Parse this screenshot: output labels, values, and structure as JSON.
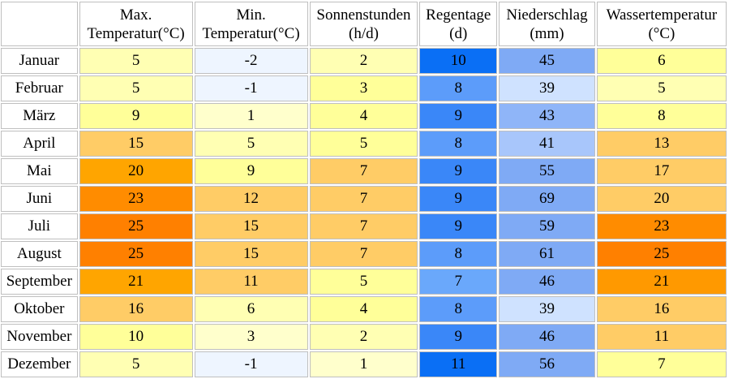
{
  "table": {
    "headers": [
      {
        "line1": "Max.",
        "line2": "Temperatur(°C)"
      },
      {
        "line1": "Min.",
        "line2": "Temperatur(°C)"
      },
      {
        "line1": "Sonnenstunden",
        "line2": "(h/d)"
      },
      {
        "line1": "Regentage",
        "line2": "(d)"
      },
      {
        "line1": "Niederschlag",
        "line2": "(mm)"
      },
      {
        "line1": "Wassertemperatur",
        "line2": "(°C)"
      }
    ],
    "rows": [
      {
        "month": "Januar",
        "values": [
          "5",
          "-2",
          "2",
          "10",
          "45",
          "6"
        ],
        "colors": [
          "#ffffb3",
          "#eef5ff",
          "#ffffb3",
          "#0a6ff5",
          "#7faaf5",
          "#ffff99"
        ]
      },
      {
        "month": "Februar",
        "values": [
          "5",
          "-1",
          "3",
          "8",
          "39",
          "5"
        ],
        "colors": [
          "#ffffb3",
          "#eef5ff",
          "#ffff99",
          "#5c9cfa",
          "#cfe2ff",
          "#ffffb3"
        ]
      },
      {
        "month": "März",
        "values": [
          "9",
          "1",
          "4",
          "9",
          "43",
          "8"
        ],
        "colors": [
          "#ffff99",
          "#ffffcc",
          "#ffff99",
          "#3a87f8",
          "#8fb5f8",
          "#ffff99"
        ]
      },
      {
        "month": "April",
        "values": [
          "15",
          "5",
          "5",
          "8",
          "41",
          "13"
        ],
        "colors": [
          "#ffcc66",
          "#ffffb3",
          "#ffff99",
          "#5c9cfa",
          "#a8c6fb",
          "#ffcc66"
        ]
      },
      {
        "month": "Mai",
        "values": [
          "20",
          "9",
          "7",
          "9",
          "55",
          "17"
        ],
        "colors": [
          "#ffa500",
          "#ffff99",
          "#ffcc66",
          "#3a87f8",
          "#7faaf5",
          "#ffcc66"
        ]
      },
      {
        "month": "Juni",
        "values": [
          "23",
          "12",
          "7",
          "9",
          "69",
          "20"
        ],
        "colors": [
          "#ff8c00",
          "#ffcc66",
          "#ffcc66",
          "#3a87f8",
          "#7faaf5",
          "#ffcc66"
        ]
      },
      {
        "month": "Juli",
        "values": [
          "25",
          "15",
          "7",
          "9",
          "59",
          "23"
        ],
        "colors": [
          "#ff8000",
          "#ffcc66",
          "#ffcc66",
          "#3a87f8",
          "#7faaf5",
          "#ff8c00"
        ]
      },
      {
        "month": "August",
        "values": [
          "25",
          "15",
          "7",
          "8",
          "61",
          "25"
        ],
        "colors": [
          "#ff8000",
          "#ffcc66",
          "#ffcc66",
          "#5c9cfa",
          "#7faaf5",
          "#ff8000"
        ]
      },
      {
        "month": "September",
        "values": [
          "21",
          "11",
          "5",
          "7",
          "46",
          "21"
        ],
        "colors": [
          "#ffa500",
          "#ffcc66",
          "#ffff99",
          "#6aa8fb",
          "#7faaf5",
          "#ff9900"
        ]
      },
      {
        "month": "Oktober",
        "values": [
          "16",
          "6",
          "4",
          "8",
          "39",
          "16"
        ],
        "colors": [
          "#ffcc66",
          "#ffffb3",
          "#ffff99",
          "#5c9cfa",
          "#cfe2ff",
          "#ffcc66"
        ]
      },
      {
        "month": "November",
        "values": [
          "10",
          "3",
          "2",
          "9",
          "46",
          "11"
        ],
        "colors": [
          "#ffff99",
          "#ffffcc",
          "#ffffb3",
          "#3a87f8",
          "#7faaf5",
          "#ffcc66"
        ]
      },
      {
        "month": "Dezember",
        "values": [
          "5",
          "-1",
          "1",
          "11",
          "56",
          "7"
        ],
        "colors": [
          "#ffffb3",
          "#eef5ff",
          "#ffffcc",
          "#0a6ff5",
          "#7faaf5",
          "#ffff99"
        ]
      }
    ]
  }
}
